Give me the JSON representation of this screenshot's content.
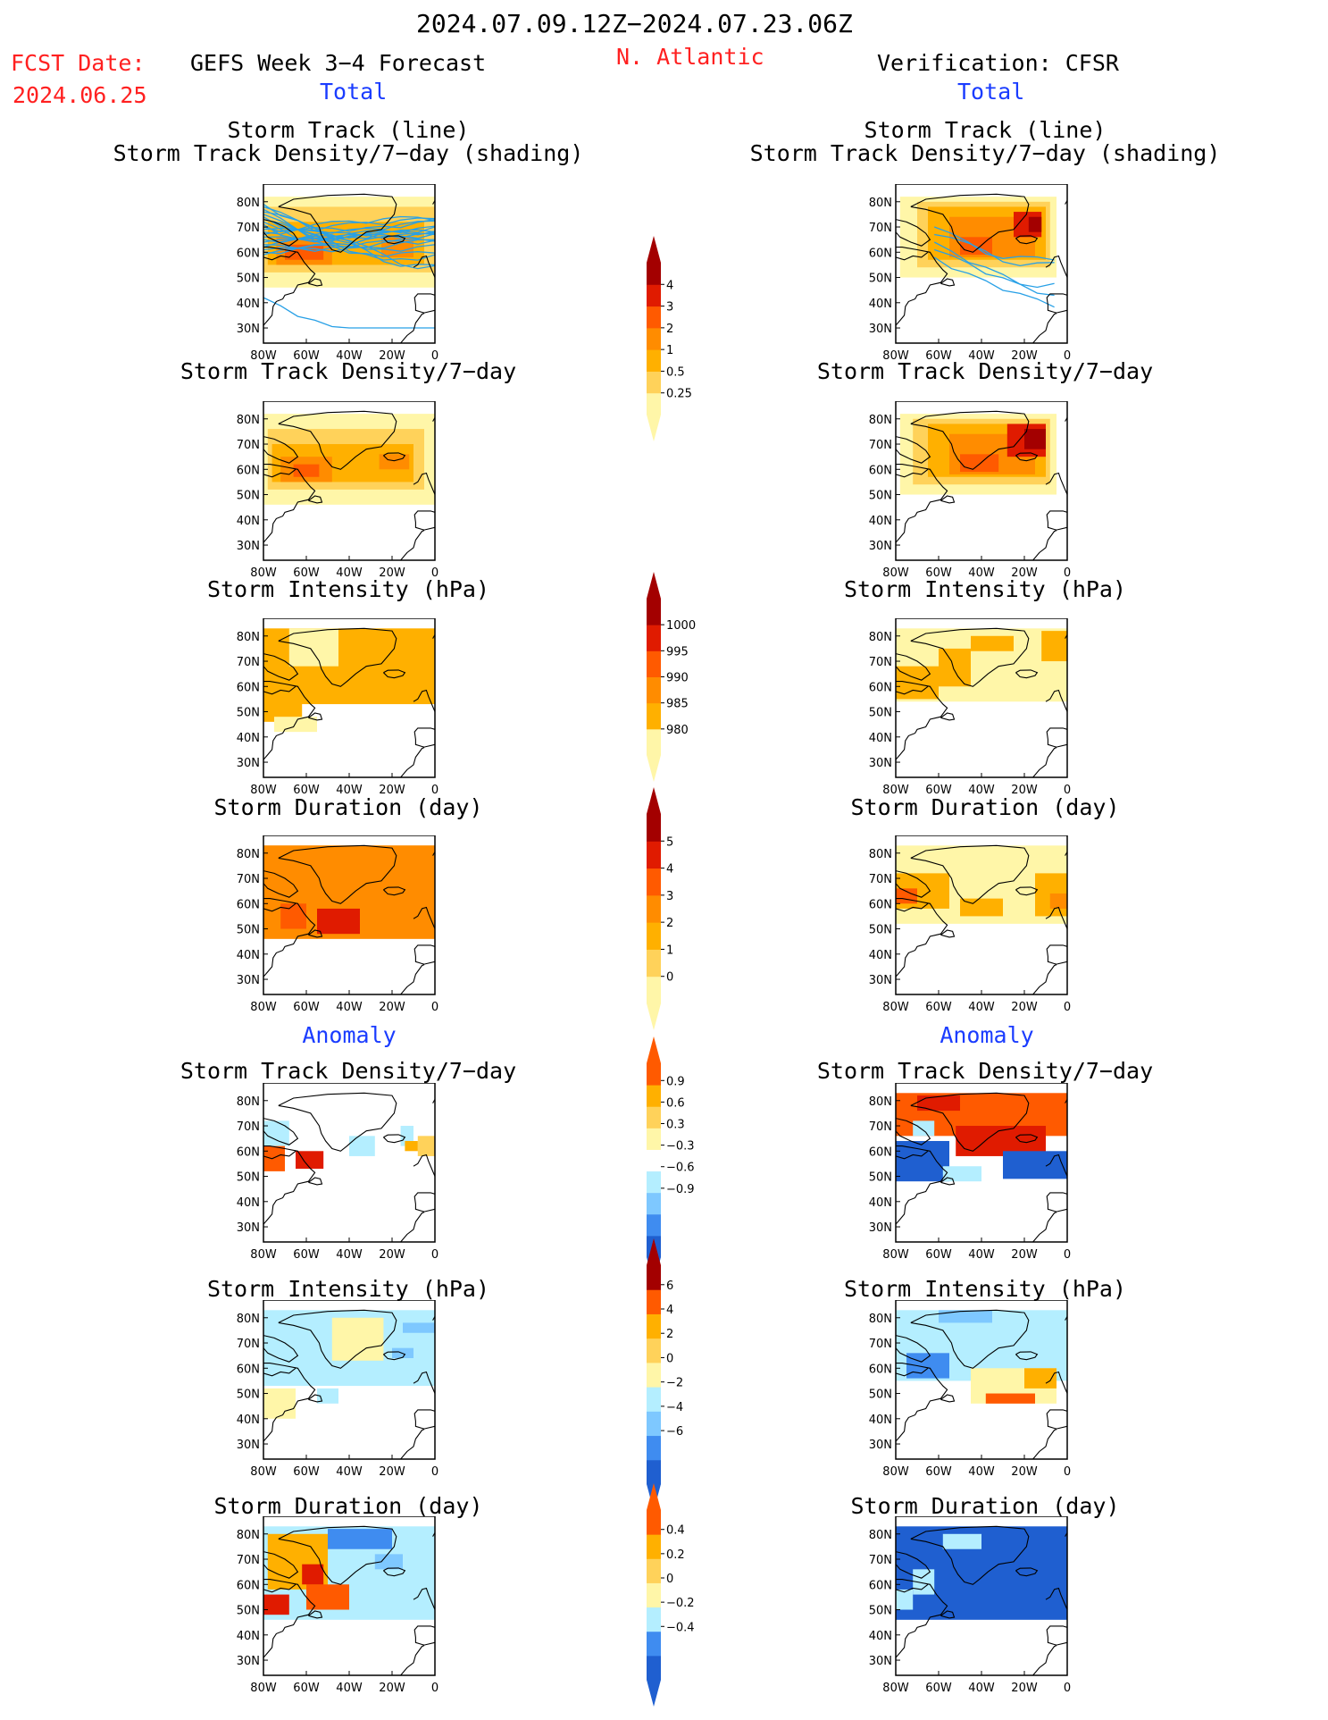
{
  "header": {
    "date_range": "2024.07.09.12Z−2024.07.23.06Z",
    "fcst_label": "FCST Date:",
    "fcst_date": "2024.06.25",
    "model_title": "GEFS Week 3−4 Forecast",
    "region": "N. Atlantic",
    "verification": "Verification: CFSR",
    "left_total": "Total",
    "right_total": "Total",
    "left_anomaly": "Anomaly",
    "right_anomaly": "Anomaly"
  },
  "titles": {
    "track_line": "Storm Track (line)",
    "track_shading": "Storm Track Density/7−day (shading)",
    "density": "Storm Track Density/7−day",
    "intensity": "Storm Intensity (hPa)",
    "duration": "Storm Duration (day)"
  },
  "axes": {
    "lat_labels": [
      "80N",
      "70N",
      "60N",
      "50N",
      "40N",
      "30N"
    ],
    "lon_labels": [
      "80W",
      "60W",
      "40W",
      "20W",
      "0"
    ]
  },
  "colorbars": {
    "density_total": [
      "4",
      "3",
      "2",
      "1",
      "0.5",
      "0.25"
    ],
    "intensity_total": [
      "1000",
      "995",
      "990",
      "985",
      "980"
    ],
    "duration_total": [
      "5",
      "4",
      "3",
      "2",
      "1",
      "0"
    ],
    "density_anom": [
      "0.9",
      "0.6",
      "0.3",
      "−0.3",
      "−0.6",
      "−0.9"
    ],
    "intensity_anom": [
      "6",
      "4",
      "2",
      "0",
      "−2",
      "−4",
      "−6"
    ],
    "duration_anom": [
      "0.4",
      "0.2",
      "0",
      "−0.2",
      "−0.4"
    ]
  },
  "colors": {
    "pale_yellow": "#fff6a8",
    "yellow": "#ffd25a",
    "light_orange": "#ffb000",
    "orange": "#ff8c00",
    "red_orange": "#ff5a00",
    "red": "#e01b00",
    "dark_red": "#a30000",
    "light_blue": "#b4eeff",
    "sky_blue": "#7ec8ff",
    "mid_blue": "#3f8cf0",
    "dark_blue": "#1f5fd0",
    "track_line": "#28a0e6"
  }
}
